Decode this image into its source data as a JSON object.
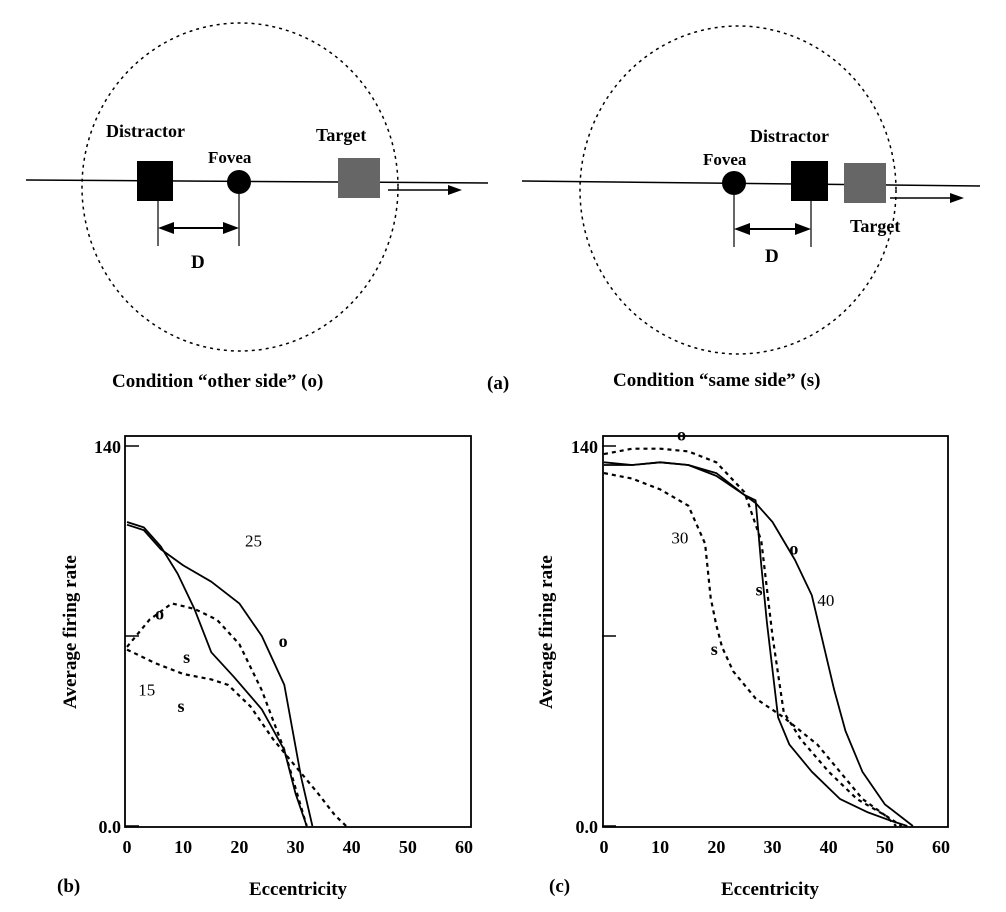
{
  "panel_a": {
    "label": "(a)",
    "left": {
      "distractor": "Distractor",
      "fovea": "Fovea",
      "target": "Target",
      "distance": "D",
      "caption": "Condition “other side” (o)"
    },
    "right": {
      "distractor": "Distractor",
      "fovea": "Fovea",
      "target": "Target",
      "distance": "D",
      "caption": "Condition “same side” (s)"
    },
    "colors": {
      "distractor": "#000000",
      "target": "#666666",
      "fovea": "#000000"
    }
  },
  "chart_data": [
    {
      "type": "line",
      "panel_label": "(b)",
      "xlabel": "Eccentricity",
      "ylabel": "Average firing rate",
      "xlim": [
        0,
        60
      ],
      "ylim": [
        0,
        140
      ],
      "x_ticks": [
        "0",
        "10",
        "20",
        "30",
        "40",
        "50",
        "60"
      ],
      "y_ticks": [
        "0.0",
        "140"
      ],
      "series": [
        {
          "style": "solid",
          "x": [
            0,
            3,
            6,
            10,
            15,
            20,
            24,
            28,
            31,
            33
          ],
          "y": [
            111,
            109,
            102,
            96,
            90,
            82,
            70,
            52,
            18,
            0
          ]
        },
        {
          "style": "solid",
          "x": [
            0,
            3,
            6,
            9,
            12,
            15,
            19,
            24,
            28,
            30,
            32
          ],
          "y": [
            112,
            110,
            103,
            93,
            80,
            64,
            55,
            43,
            28,
            12,
            0
          ]
        },
        {
          "style": "dashed",
          "x": [
            0,
            4,
            8,
            12,
            16,
            20,
            24,
            28,
            30,
            32
          ],
          "y": [
            66,
            76,
            82,
            80,
            76,
            67,
            50,
            28,
            14,
            0
          ]
        },
        {
          "style": "dashed",
          "x": [
            0,
            5,
            10,
            15,
            18,
            22,
            26,
            30,
            34,
            37,
            39
          ],
          "y": [
            65,
            60,
            56,
            54,
            52,
            44,
            32,
            22,
            12,
            4,
            0
          ]
        }
      ],
      "annotations": [
        {
          "text": "25",
          "x": 21,
          "y": 103
        },
        {
          "text": "o",
          "x": 5,
          "y": 76
        },
        {
          "text": "s",
          "x": 10,
          "y": 60
        },
        {
          "text": "o",
          "x": 27,
          "y": 66
        },
        {
          "text": "15",
          "x": 2,
          "y": 48
        },
        {
          "text": "s",
          "x": 9,
          "y": 42
        }
      ]
    },
    {
      "type": "line",
      "panel_label": "(c)",
      "xlabel": "Eccentricity",
      "ylabel": "Average firing rate",
      "xlim": [
        0,
        60
      ],
      "ylim": [
        0,
        140
      ],
      "x_ticks": [
        "0",
        "10",
        "20",
        "30",
        "40",
        "50",
        "60"
      ],
      "y_ticks": [
        "0.0",
        "140"
      ],
      "series": [
        {
          "style": "dashed",
          "x": [
            0,
            5,
            10,
            15,
            20,
            25,
            28,
            30,
            32,
            35,
            40,
            45,
            50,
            53
          ],
          "y": [
            137,
            139,
            139,
            138,
            134,
            123,
            105,
            70,
            42,
            32,
            20,
            10,
            4,
            0
          ]
        },
        {
          "style": "dashed",
          "x": [
            0,
            5,
            10,
            15,
            18,
            19,
            20,
            21,
            23,
            27,
            32,
            38,
            42,
            46,
            50,
            52
          ],
          "y": [
            130,
            128,
            124,
            118,
            104,
            84,
            74,
            66,
            57,
            47,
            40,
            30,
            20,
            10,
            4,
            0
          ]
        },
        {
          "style": "solid",
          "x": [
            0,
            5,
            10,
            15,
            20,
            25,
            27,
            28,
            29,
            31,
            33,
            37,
            42,
            47,
            51,
            54
          ],
          "y": [
            133,
            133,
            134,
            133,
            130,
            122,
            120,
            96,
            75,
            40,
            30,
            20,
            10,
            5,
            2,
            0
          ]
        },
        {
          "style": "solid",
          "x": [
            0,
            5,
            10,
            15,
            20,
            25,
            27,
            30,
            34,
            37,
            41,
            43,
            46,
            50,
            55
          ],
          "y": [
            134,
            133,
            134,
            133,
            129,
            122,
            119,
            112,
            98,
            85,
            50,
            35,
            20,
            8,
            0
          ]
        }
      ],
      "annotations": [
        {
          "text": "o",
          "x": 13,
          "y": 142
        },
        {
          "text": "30",
          "x": 12,
          "y": 104
        },
        {
          "text": "o",
          "x": 33,
          "y": 100
        },
        {
          "text": "s",
          "x": 27,
          "y": 85
        },
        {
          "text": "40",
          "x": 38,
          "y": 81
        },
        {
          "text": "s",
          "x": 19,
          "y": 63
        }
      ]
    }
  ]
}
